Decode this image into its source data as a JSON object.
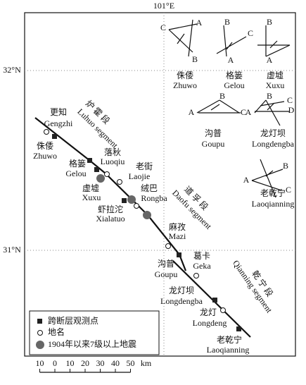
{
  "map": {
    "longitude_label": "101°E",
    "latitude_labels": [
      "32°N",
      "31°N"
    ],
    "segments": [
      {
        "zh": "炉 霍 段",
        "en": "Luhuo segment"
      },
      {
        "zh": "道 孚 段",
        "en": "Daofu segment"
      },
      {
        "zh": "乾 宁 段",
        "en": "Qianning segment"
      }
    ],
    "places": [
      {
        "zh": "更知",
        "en": "Gengzhi"
      },
      {
        "zh": "侏倭",
        "en": "Zhuwo"
      },
      {
        "zh": "格篓",
        "en": "Gelou"
      },
      {
        "zh": "落秋",
        "en": "Luoqiu"
      },
      {
        "zh": "老街",
        "en": "Laojie"
      },
      {
        "zh": "虚墟",
        "en": "Xuxu"
      },
      {
        "zh": "绒巴",
        "en": "Rongba"
      },
      {
        "zh": "虾拉沱",
        "en": "Xialatuo"
      },
      {
        "zh": "麻孜",
        "en": "Mazi"
      },
      {
        "zh": "沟普",
        "en": "Goupu"
      },
      {
        "zh": "葛卡",
        "en": "Geka"
      },
      {
        "zh": "龙灯坝",
        "en": "Longdengba"
      },
      {
        "zh": "龙灯",
        "en": "Longdeng"
      },
      {
        "zh": "老乾宁",
        "en": "Laoqianning"
      }
    ],
    "insets": [
      {
        "zh": "侏倭",
        "en": "Zhuwo",
        "letters": [
          "C",
          "A",
          "B"
        ]
      },
      {
        "zh": "格篓",
        "en": "Gelou",
        "letters": [
          "B",
          "C",
          "A"
        ]
      },
      {
        "zh": "虚墟",
        "en": "Xuxu",
        "letters": [
          "B",
          "A"
        ]
      },
      {
        "zh": "沟普",
        "en": "Goupu",
        "letters": [
          "B",
          "A",
          "C"
        ]
      },
      {
        "zh": "龙灯坝",
        "en": "Longdengba",
        "letters": [
          "B",
          "A",
          "C",
          "D"
        ]
      },
      {
        "zh": "老乾宁",
        "en": "Laoqianning",
        "letters": [
          "B",
          "A",
          "C"
        ]
      }
    ]
  },
  "legend": {
    "items": [
      "跨断层观测点",
      "地名",
      "1904年以来7级以上地震"
    ]
  },
  "scale": {
    "ticks": [
      {
        "value": -10,
        "label": "10"
      },
      0,
      10,
      20,
      30,
      40,
      50
    ],
    "unit": "km"
  }
}
